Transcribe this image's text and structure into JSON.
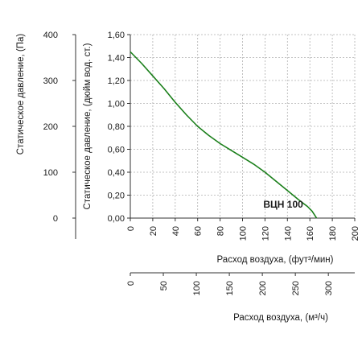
{
  "chart_data": {
    "type": "line",
    "series": [
      {
        "name": "ВЦН 100",
        "color": "#1a7f1a",
        "x": [
          0,
          10,
          20,
          30,
          40,
          50,
          60,
          70,
          80,
          90,
          100,
          110,
          120,
          130,
          140,
          150,
          158,
          162,
          164,
          166
        ],
        "y": [
          1.45,
          1.35,
          1.24,
          1.13,
          1.01,
          0.9,
          0.8,
          0.72,
          0.65,
          0.59,
          0.53,
          0.47,
          0.4,
          0.32,
          0.24,
          0.16,
          0.1,
          0.06,
          0.03,
          0.0
        ]
      }
    ],
    "x_axis": {
      "label": "Расход воздуха, (фут³/мин)",
      "range": [
        0,
        200
      ],
      "ticks": [
        "0",
        "20",
        "40",
        "60",
        "80",
        "100",
        "120",
        "140",
        "160",
        "180",
        "200"
      ]
    },
    "x_axis_secondary": {
      "label": "Расход воздуха, (м³/ч)",
      "range": [
        0,
        340
      ],
      "ticks": [
        "0",
        "50",
        "100",
        "150",
        "200",
        "250",
        "300"
      ]
    },
    "y_axis": {
      "label": "Статическое давление, (дюйм вод. ст.)",
      "range": [
        0,
        1.6
      ],
      "ticks": [
        "0,00",
        "0,20",
        "0,40",
        "0,60",
        "0,80",
        "1,00",
        "1,20",
        "1,40",
        "1,60"
      ]
    },
    "y_axis_secondary": {
      "label": "Статическое давление, (Па)",
      "range": [
        0,
        400
      ],
      "ticks": [
        "0",
        "100",
        "200",
        "300",
        "400"
      ]
    },
    "grid": true,
    "grid_color": "#b0b0b0",
    "axis_color": "#333333"
  }
}
